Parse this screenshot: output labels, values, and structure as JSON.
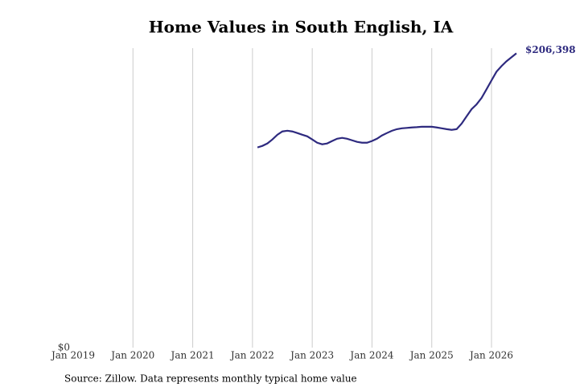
{
  "chart_data": {
    "type": "line",
    "title": "Home Values in South English, IA",
    "source": "Source: Zillow. Data represents monthly typical home value",
    "x": [
      "2022-02",
      "2022-03",
      "2022-04",
      "2022-05",
      "2022-06",
      "2022-07",
      "2022-08",
      "2022-09",
      "2022-10",
      "2022-11",
      "2022-12",
      "2023-01",
      "2023-02",
      "2023-03",
      "2023-04",
      "2023-05",
      "2023-06",
      "2023-07",
      "2023-08",
      "2023-09",
      "2023-10",
      "2023-11",
      "2023-12",
      "2024-01",
      "2024-02",
      "2024-03",
      "2024-04",
      "2024-05",
      "2024-06",
      "2024-07",
      "2024-08",
      "2024-09",
      "2024-10",
      "2024-11",
      "2024-12",
      "2025-01",
      "2025-02",
      "2025-03",
      "2025-04",
      "2025-05",
      "2025-06",
      "2025-07",
      "2025-08",
      "2025-09",
      "2025-10",
      "2025-11",
      "2025-12",
      "2026-01",
      "2026-02",
      "2026-03",
      "2026-04",
      "2026-05",
      "2026-06"
    ],
    "series": [
      {
        "color": "#2e2a7f",
        "values": [
          140400,
          141500,
          143200,
          146000,
          149300,
          151600,
          152100,
          151600,
          150500,
          149300,
          148200,
          146000,
          143700,
          142600,
          143200,
          144900,
          146500,
          147100,
          146500,
          145400,
          144300,
          143700,
          143700,
          144900,
          146500,
          148800,
          150500,
          152100,
          153200,
          153800,
          154100,
          154400,
          154600,
          154900,
          154900,
          154900,
          154400,
          153800,
          153200,
          152700,
          153200,
          157100,
          162200,
          167200,
          170600,
          175100,
          181200,
          187400,
          193500,
          197400,
          200800,
          203600,
          206398
        ],
        "value_labels": [
          null,
          null,
          null,
          null,
          null,
          null,
          null,
          null,
          null,
          null,
          null,
          null,
          null,
          null,
          null,
          null,
          null,
          null,
          null,
          null,
          null,
          null,
          null,
          null,
          null,
          null,
          null,
          null,
          null,
          null,
          null,
          null,
          null,
          null,
          null,
          null,
          null,
          null,
          null,
          null,
          null,
          null,
          null,
          null,
          null,
          null,
          null,
          null,
          null,
          null,
          null,
          null,
          "$206,398"
        ]
      }
    ],
    "xlim": [
      "2019-01",
      "2026-06"
    ],
    "xticks": [
      {
        "value": "2019-01",
        "label": "Jan 2019"
      },
      {
        "value": "2020-01",
        "label": "Jan 2020"
      },
      {
        "value": "2021-01",
        "label": "Jan 2021"
      },
      {
        "value": "2022-01",
        "label": "Jan 2022"
      },
      {
        "value": "2023-01",
        "label": "Jan 2023"
      },
      {
        "value": "2024-01",
        "label": "Jan 2024"
      },
      {
        "value": "2025-01",
        "label": "Jan 2025"
      },
      {
        "value": "2026-01",
        "label": "Jan 2026"
      }
    ],
    "ylim": [
      0,
      210000
    ],
    "yticks": [
      {
        "value": 0,
        "label": "$0"
      }
    ],
    "grid": true
  }
}
